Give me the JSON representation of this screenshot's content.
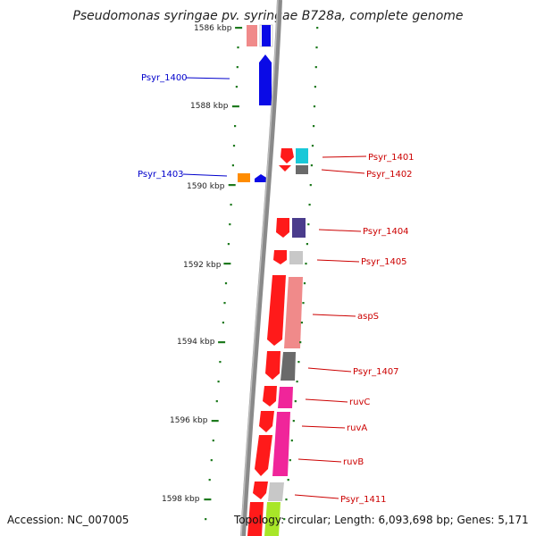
{
  "title": "Pseudomonas syringae pv. syringae B728a, complete genome",
  "footer": {
    "accession": "Accession: NC_007005",
    "topology": "Topology: circular; Length: 6,093,698 bp; Genes: 5,171"
  },
  "scale_labels": [
    "1586 kbp",
    "1588 kbp",
    "1590 kbp",
    "1592 kbp",
    "1594 kbp",
    "1596 kbp",
    "1598 kbp"
  ],
  "gene_labels_left": [
    "Psyr_1400",
    "Psyr_1403"
  ],
  "gene_labels_right": [
    "Psyr_1401",
    "Psyr_1402",
    "Psyr_1404",
    "Psyr_1405",
    "aspS",
    "Psyr_1407",
    "ruvC",
    "ruvA",
    "ruvB",
    "Psyr_1411"
  ],
  "colors": {
    "backbone": "#8a8a8a",
    "tick": "#1e7a1e",
    "forward_label": "#0000cc",
    "reverse_label": "#cc0000",
    "red": "#ff1a1a",
    "blue": "#0a0ae6",
    "pink": "#f08a8a",
    "magenta": "#f0259a",
    "grey": "#6a6a6a",
    "cyan": "#19c8d8",
    "purple": "#4a3c8c",
    "orange": "#ff8c00",
    "lime": "#a8e628"
  }
}
